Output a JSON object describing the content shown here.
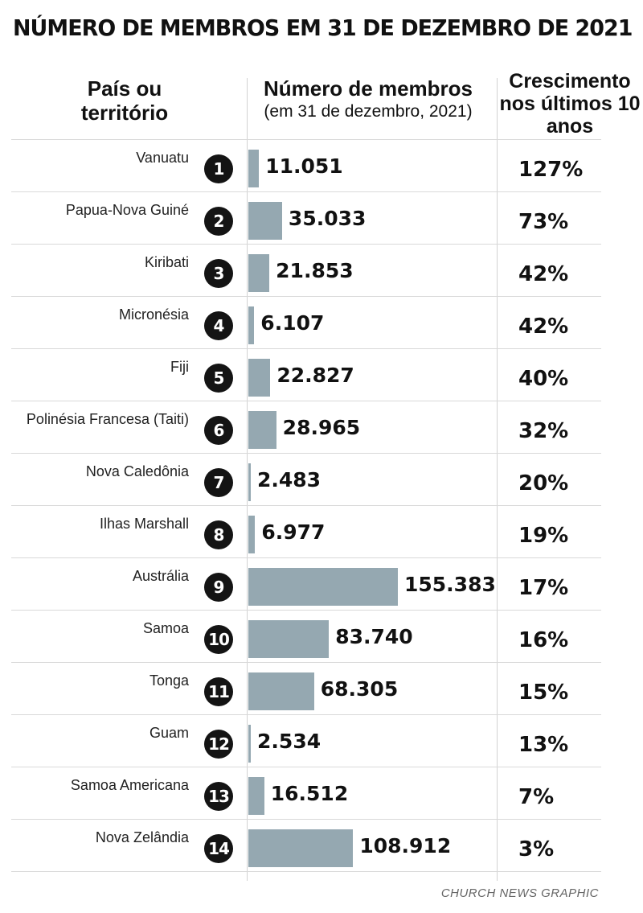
{
  "title": "NÚMERO DE MEMBROS EM 31 DE DEZEMBRO DE 2021",
  "headers": {
    "country": "País ou território",
    "members_line1": "Número de membros",
    "members_line2": "(em 31 de dezembro, 2021)",
    "growth": "Crescimento nos últimos 10 anos"
  },
  "credit": "CHURCH NEWS GRAPHIC",
  "colors": {
    "bar": "#95a8b1",
    "rank_circle": "#141414"
  },
  "chart_data": {
    "type": "bar",
    "title": "NÚMERO DE MEMBROS EM 31 DE DEZEMBRO DE 2021",
    "orientation": "horizontal",
    "xlabel": "Número de membros (em 31 de dezembro, 2021)",
    "ylabel": "País ou território",
    "categories": [
      "Vanuatu",
      "Papua-Nova Guiné",
      "Kiribati",
      "Micronésia",
      "Fiji",
      "Polinésia Francesa (Taiti)",
      "Nova Caledônia",
      "Ilhas Marshall",
      "Austrália",
      "Samoa",
      "Tonga",
      "Guam",
      "Samoa Americana",
      "Nova Zelândia"
    ],
    "ranks": [
      "1",
      "2",
      "3",
      "4",
      "5",
      "6",
      "7",
      "8",
      "9",
      "10",
      "11",
      "12",
      "13",
      "14"
    ],
    "values": [
      11051,
      35033,
      21853,
      6107,
      22827,
      28965,
      2483,
      6977,
      155383,
      83740,
      68305,
      2534,
      16512,
      108912
    ],
    "value_labels": [
      "11.051",
      "35.033",
      "21.853",
      "6.107",
      "22.827",
      "28.965",
      "2.483",
      "6.977",
      "155.383",
      "83.740",
      "68.305",
      "2.534",
      "16.512",
      "108.912"
    ],
    "growth_labels": [
      "127%",
      "73%",
      "42%",
      "42%",
      "40%",
      "32%",
      "20%",
      "19%",
      "17%",
      "16%",
      "15%",
      "13%",
      "7%",
      "3%"
    ],
    "xlim": [
      0,
      155383
    ]
  }
}
